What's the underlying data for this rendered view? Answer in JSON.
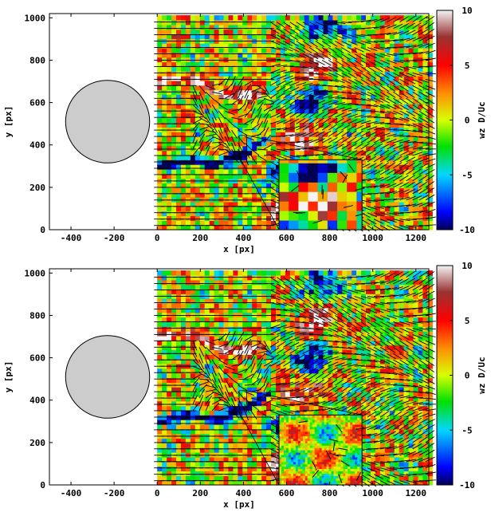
{
  "chart_data": [
    {
      "type": "heatmap",
      "xlabel": "x [px]",
      "ylabel": "y [px]",
      "xlim": [
        -500,
        1260
      ],
      "ylim": [
        0,
        1020
      ],
      "xticks": [
        -400,
        -200,
        0,
        200,
        400,
        600,
        800,
        1000,
        1200
      ],
      "yticks": [
        0,
        200,
        400,
        600,
        800,
        1000
      ],
      "colorbar": {
        "label": "wz D/Uc",
        "range": [
          -10,
          10
        ],
        "ticks": [
          10,
          5,
          0,
          -5,
          -10
        ],
        "colors": [
          "#000066",
          "#0000ff",
          "#00ffff",
          "#00ff00",
          "#ffff00",
          "#ff8000",
          "#ff0000",
          "#ffffff"
        ]
      },
      "cylinder": {
        "center": [
          -230,
          510
        ],
        "radius": 195,
        "color": "#cccccc"
      },
      "field_x_range": [
        0,
        1260
      ],
      "inset": {
        "x_range": [
          565,
          950
        ],
        "y_range": [
          0,
          330
        ],
        "style": "coarse-pixelated"
      }
    },
    {
      "type": "heatmap",
      "xlabel": "x [px]",
      "ylabel": "y [px]",
      "xlim": [
        -500,
        1260
      ],
      "ylim": [
        0,
        1020
      ],
      "xticks": [
        -400,
        -200,
        0,
        200,
        400,
        600,
        800,
        1000,
        1200
      ],
      "yticks": [
        0,
        200,
        400,
        600,
        800,
        1000
      ],
      "colorbar": {
        "label": "wz D/Uc",
        "range": [
          -10,
          10
        ],
        "ticks": [
          10,
          5,
          0,
          -5,
          -10
        ],
        "colors": [
          "#000066",
          "#0000ff",
          "#00ffff",
          "#00ff00",
          "#ffff00",
          "#ff8000",
          "#ff0000",
          "#ffffff"
        ]
      },
      "cylinder": {
        "center": [
          -230,
          510
        ],
        "radius": 195,
        "color": "#cccccc"
      },
      "field_x_range": [
        0,
        1260
      ],
      "inset": {
        "x_range": [
          565,
          950
        ],
        "y_range": [
          0,
          330
        ],
        "style": "smooth-interpolated"
      }
    }
  ]
}
